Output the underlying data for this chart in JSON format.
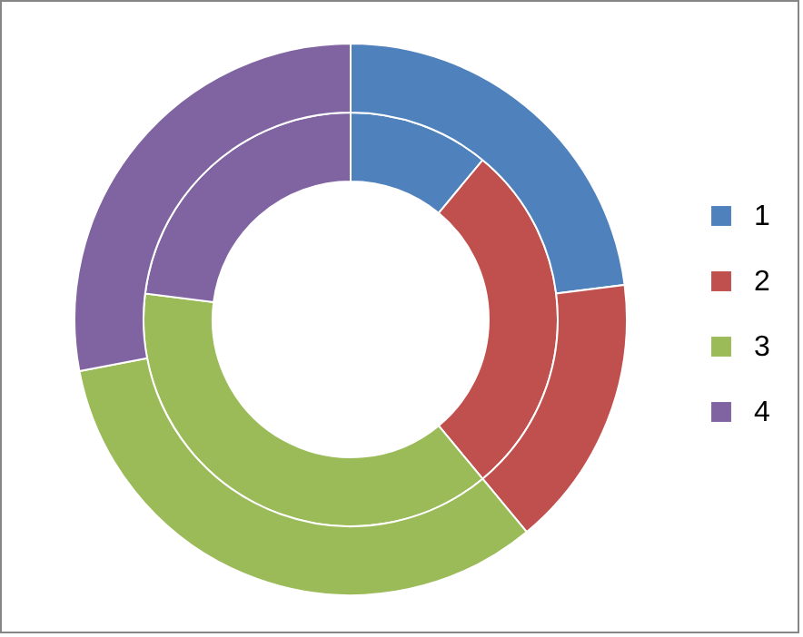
{
  "chart_data": {
    "type": "donut",
    "categories": [
      "1",
      "2",
      "3",
      "4"
    ],
    "colors": [
      "#4f81bd",
      "#c0504d",
      "#9bbb59",
      "#8064a2"
    ],
    "legend": "right",
    "series": [
      {
        "values": [
          11,
          28,
          38,
          23
        ]
      },
      {
        "values": [
          23,
          16,
          33,
          28
        ]
      }
    ]
  }
}
